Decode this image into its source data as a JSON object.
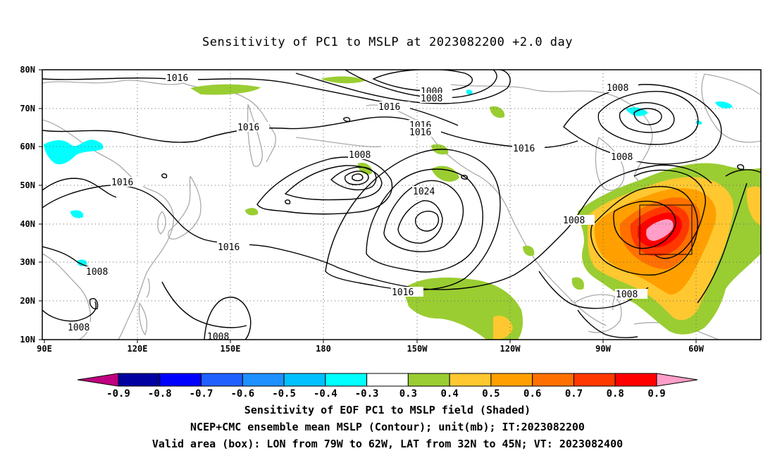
{
  "title": "Sensitivity of PC1 to MSLP at 2023082200 +2.0 day",
  "axes": {
    "lat_labels": [
      "80N",
      "70N",
      "60N",
      "50N",
      "40N",
      "30N",
      "20N",
      "10N"
    ],
    "lon_labels": [
      "90E",
      "120E",
      "150E",
      "180",
      "150W",
      "120W",
      "90W",
      "60W"
    ]
  },
  "contour_labels": [
    "1016",
    "1000",
    "1008",
    "1016",
    "1016",
    "1016",
    "1008",
    "1016",
    "1016",
    "1008",
    "1024",
    "1016",
    "1008",
    "1008",
    "1008",
    "1016",
    "1008",
    "1008",
    "1016",
    "1008"
  ],
  "colorbar": {
    "colors": [
      "#c00080",
      "#0000a0",
      "#0000ff",
      "#2060ff",
      "#1e90ff",
      "#00c0ff",
      "#00ffff",
      "#ffffff",
      "#9acd32",
      "#ffc830",
      "#ffa000",
      "#ff7000",
      "#ff3800",
      "#ff0000",
      "#ff9ec8"
    ],
    "labels": [
      "-0.9",
      "-0.8",
      "-0.7",
      "-0.6",
      "-0.5",
      "-0.4",
      "-0.3",
      "0.3",
      "0.4",
      "0.5",
      "0.6",
      "0.7",
      "0.8",
      "0.9"
    ]
  },
  "valid_box": {
    "lon_min": -79,
    "lon_max": -62,
    "lat_min": 32,
    "lat_max": 45
  },
  "captions": [
    "Sensitivity of EOF PC1 to MSLP field (Shaded)",
    "NCEP+CMC ensemble mean MSLP (Contour); unit(mb); IT:2023082200",
    "Valid area (box): LON from 79W to 62W, LAT from 32N to 45N; VT: 2023082400"
  ]
}
